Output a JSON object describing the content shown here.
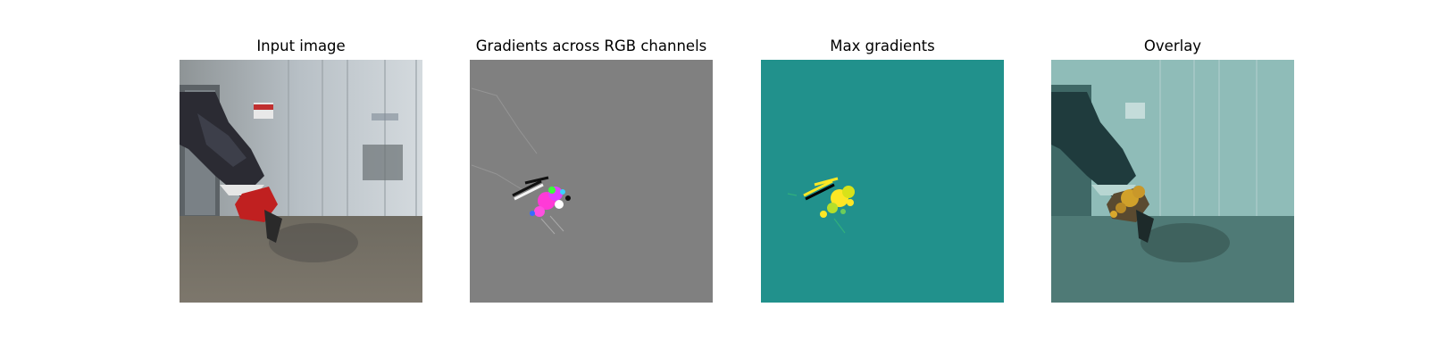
{
  "figure": {
    "panels": [
      {
        "title": "Input image",
        "image": "robot-arm-camera-photo"
      },
      {
        "title": "Gradients across RGB channels",
        "image": "rgb-gradient-map"
      },
      {
        "title": "Max gradients",
        "image": "max-gradient-heatmap"
      },
      {
        "title": "Overlay",
        "image": "gradient-overlay-photo"
      }
    ],
    "colors": {
      "gradient_background": "#808080",
      "heatmap_background": "#21918c",
      "heatmap_high": "#fde725",
      "overlay_tint": "#7fc8c2",
      "gripper_red": "#c02020"
    }
  }
}
